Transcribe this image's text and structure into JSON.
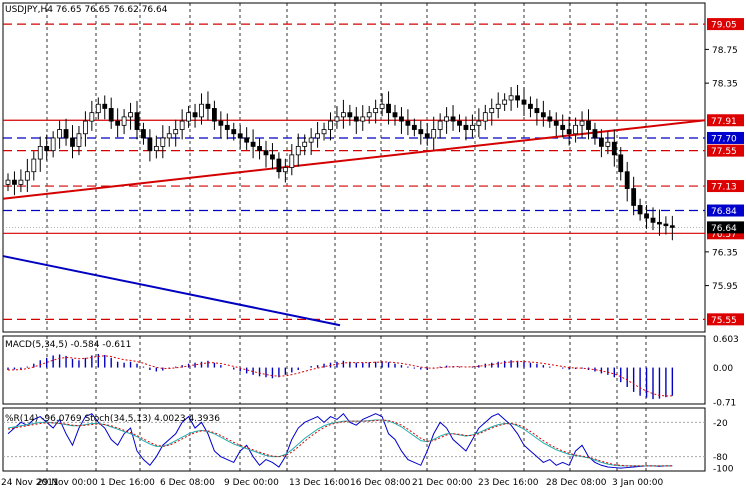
{
  "header": {
    "main_title": "USDJPY,H4  76.65 76.65 76.62 76.64",
    "macd_title": "MACD(5,34,5) -0.584 -0.611",
    "stoch_title": "%R(14) -96.0769  Stoch(34,5,13) 4.0023 4.3936"
  },
  "colors": {
    "background": "#ffffff",
    "candle": "#000000",
    "red_line": "#d40000",
    "blue_line": "#0000c0",
    "macd_signal": "#e00000",
    "stoch_main": "#20b0b0",
    "stoch_signal": "#e00000",
    "wpr_line": "#0000cc",
    "price_tag_red": "#dd0000",
    "price_tag_blue": "#0000cc",
    "current_tag": "#000000"
  },
  "chart_data": [
    {
      "type": "candlestick",
      "pane": "main",
      "symbol": "USDJPY",
      "timeframe": "H4",
      "ylim": [
        75.4,
        79.3
      ],
      "x_ticks": [
        "24 Nov 2011",
        "29 Nov 00:00",
        "1 Dec 16:00",
        "6 Dec 08:00",
        "9 Dec 00:00",
        "13 Dec 16:00",
        "16 Dec 08:00",
        "21 Dec 00:00",
        "23 Dec 16:00",
        "28 Dec 08:00",
        "3 Jan 00:00"
      ],
      "y_ticks": [
        79.15,
        78.75,
        78.35,
        77.95,
        77.55,
        77.15,
        76.75,
        76.35,
        75.95,
        75.55
      ],
      "closes": [
        77.2,
        77.15,
        77.2,
        77.3,
        77.45,
        77.6,
        77.55,
        77.7,
        77.8,
        77.7,
        77.6,
        77.75,
        77.9,
        78.0,
        78.1,
        78.05,
        77.9,
        77.85,
        77.95,
        78.0,
        77.8,
        77.7,
        77.55,
        77.6,
        77.7,
        77.75,
        77.8,
        77.9,
        78.0,
        77.95,
        78.1,
        78.05,
        77.9,
        77.85,
        77.8,
        77.75,
        77.7,
        77.65,
        77.6,
        77.55,
        77.5,
        77.45,
        77.3,
        77.35,
        77.5,
        77.6,
        77.65,
        77.7,
        77.75,
        77.8,
        77.9,
        77.95,
        78.0,
        77.95,
        77.9,
        77.95,
        78.0,
        78.05,
        78.1,
        78.0,
        77.95,
        77.9,
        77.85,
        77.8,
        77.75,
        77.7,
        77.8,
        77.9,
        77.95,
        77.9,
        77.85,
        77.8,
        77.85,
        77.9,
        78.0,
        78.05,
        78.1,
        78.15,
        78.2,
        78.15,
        78.1,
        78.05,
        78.0,
        77.95,
        77.9,
        77.85,
        77.8,
        77.75,
        77.85,
        77.9,
        77.8,
        77.7,
        77.6,
        77.65,
        77.5,
        77.3,
        77.1,
        76.9,
        76.8,
        76.75,
        76.7,
        76.68,
        76.66,
        76.64
      ],
      "horizontal_lines": [
        {
          "label": "79.05",
          "value": 79.05,
          "color": "red",
          "style": "dashed"
        },
        {
          "label": "77.91",
          "value": 77.91,
          "color": "red",
          "style": "solid"
        },
        {
          "label": "77.70",
          "value": 77.7,
          "color": "blue",
          "style": "dashed"
        },
        {
          "label": "77.55",
          "value": 77.55,
          "color": "red",
          "style": "dashed"
        },
        {
          "label": "77.13",
          "value": 77.13,
          "color": "red",
          "style": "dashed"
        },
        {
          "label": "76.84",
          "value": 76.84,
          "color": "blue",
          "style": "dashed"
        },
        {
          "label": "76.57",
          "value": 76.57,
          "color": "red",
          "style": "solid"
        },
        {
          "label": "75.55",
          "value": 75.55,
          "color": "red",
          "style": "dashed"
        }
      ],
      "current_price": {
        "label": "76.64",
        "value": 76.64
      },
      "trendlines": [
        {
          "color": "red",
          "from": [
            0,
            76.98
          ],
          "to": [
            103,
            77.91
          ]
        },
        {
          "color": "blue",
          "from": [
            0,
            76.3
          ],
          "to": [
            50,
            75.48
          ]
        }
      ]
    },
    {
      "type": "bar",
      "pane": "macd",
      "name": "MACD(5,34,5)",
      "value_label": "-0.584",
      "signal_label": "-0.611",
      "ylim": [
        -0.75,
        0.65
      ],
      "y_ticks": [
        "0.603",
        "0.00",
        "-0.71"
      ],
      "values": [
        -0.05,
        -0.04,
        -0.03,
        0.02,
        0.08,
        0.15,
        0.2,
        0.25,
        0.27,
        0.24,
        0.18,
        0.15,
        0.2,
        0.25,
        0.28,
        0.26,
        0.2,
        0.12,
        0.1,
        0.12,
        0.08,
        0.02,
        -0.05,
        -0.08,
        -0.06,
        -0.02,
        0.02,
        0.05,
        0.08,
        0.1,
        0.12,
        0.14,
        0.1,
        0.05,
        0.0,
        -0.04,
        -0.08,
        -0.12,
        -0.15,
        -0.18,
        -0.2,
        -0.22,
        -0.2,
        -0.15,
        -0.1,
        -0.05,
        0.0,
        0.03,
        0.05,
        0.08,
        0.1,
        0.12,
        0.14,
        0.12,
        0.1,
        0.1,
        0.11,
        0.12,
        0.13,
        0.11,
        0.08,
        0.05,
        0.02,
        -0.02,
        -0.04,
        -0.05,
        -0.02,
        0.02,
        0.04,
        0.03,
        0.02,
        0.0,
        0.02,
        0.05,
        0.08,
        0.1,
        0.12,
        0.14,
        0.15,
        0.14,
        0.12,
        0.1,
        0.08,
        0.05,
        0.02,
        0.0,
        -0.02,
        -0.04,
        -0.03,
        -0.02,
        -0.05,
        -0.08,
        -0.12,
        -0.15,
        -0.2,
        -0.3,
        -0.4,
        -0.5,
        -0.58,
        -0.62,
        -0.65,
        -0.64,
        -0.61,
        -0.58
      ]
    },
    {
      "type": "line",
      "pane": "stochastic",
      "name": "%R(14) / Stoch(34,5,13)",
      "ylim": [
        -105,
        5
      ],
      "y_ticks": [
        "-20",
        "-80",
        "-100"
      ],
      "series": [
        {
          "name": "%R(14)",
          "color": "blue",
          "values": [
            -40,
            -30,
            -20,
            -25,
            -15,
            -10,
            -20,
            -30,
            -15,
            -40,
            -60,
            -30,
            -10,
            -5,
            -20,
            -30,
            -50,
            -60,
            -40,
            -30,
            -70,
            -85,
            -95,
            -80,
            -60,
            -50,
            -40,
            -20,
            -10,
            -30,
            -20,
            -40,
            -70,
            -80,
            -85,
            -90,
            -70,
            -60,
            -80,
            -95,
            -85,
            -90,
            -98,
            -80,
            -50,
            -30,
            -20,
            -15,
            -10,
            -20,
            -10,
            -15,
            -5,
            -20,
            -25,
            -15,
            -10,
            -5,
            -10,
            -40,
            -50,
            -70,
            -85,
            -90,
            -95,
            -70,
            -40,
            -20,
            -30,
            -50,
            -60,
            -70,
            -50,
            -30,
            -20,
            -10,
            -5,
            -15,
            -25,
            -40,
            -60,
            -70,
            -80,
            -90,
            -85,
            -95,
            -90,
            -95,
            -70,
            -60,
            -80,
            -90,
            -95,
            -98,
            -99,
            -100,
            -99,
            -98,
            -97,
            -96,
            -96,
            -97,
            -96,
            -96
          ]
        },
        {
          "name": "Stoch main",
          "color": "teal",
          "values": [
            -30,
            -28,
            -26,
            -24,
            -22,
            -20,
            -20,
            -21,
            -22,
            -24,
            -26,
            -26,
            -24,
            -22,
            -22,
            -24,
            -28,
            -32,
            -36,
            -40,
            -45,
            -52,
            -58,
            -62,
            -62,
            -58,
            -52,
            -46,
            -40,
            -36,
            -34,
            -36,
            -40,
            -46,
            -52,
            -58,
            -62,
            -66,
            -70,
            -74,
            -78,
            -80,
            -80,
            -76,
            -68,
            -58,
            -48,
            -40,
            -32,
            -26,
            -22,
            -20,
            -18,
            -18,
            -18,
            -18,
            -17,
            -16,
            -16,
            -18,
            -22,
            -28,
            -36,
            -44,
            -52,
            -54,
            -50,
            -44,
            -40,
            -40,
            -42,
            -44,
            -42,
            -38,
            -33,
            -28,
            -24,
            -22,
            -22,
            -26,
            -32,
            -40,
            -48,
            -56,
            -62,
            -68,
            -72,
            -76,
            -78,
            -80,
            -82,
            -86,
            -90,
            -93,
            -95,
            -96,
            -96,
            -96,
            -96,
            -96,
            -96,
            -96,
            -96,
            -96
          ]
        },
        {
          "name": "Stoch signal",
          "color": "red",
          "values": [
            -32,
            -30,
            -28,
            -26,
            -24,
            -22,
            -21,
            -21,
            -22,
            -23,
            -25,
            -26,
            -25,
            -24,
            -23,
            -24,
            -26,
            -30,
            -34,
            -38,
            -43,
            -49,
            -55,
            -60,
            -62,
            -60,
            -55,
            -49,
            -43,
            -38,
            -35,
            -35,
            -38,
            -43,
            -49,
            -55,
            -60,
            -64,
            -68,
            -72,
            -76,
            -79,
            -80,
            -78,
            -72,
            -63,
            -53,
            -44,
            -36,
            -29,
            -24,
            -21,
            -19,
            -18,
            -18,
            -18,
            -18,
            -17,
            -16,
            -17,
            -20,
            -25,
            -32,
            -40,
            -48,
            -53,
            -52,
            -47,
            -42,
            -40,
            -41,
            -43,
            -43,
            -40,
            -35,
            -30,
            -26,
            -23,
            -22,
            -24,
            -29,
            -36,
            -44,
            -52,
            -59,
            -65,
            -70,
            -74,
            -77,
            -79,
            -81,
            -84,
            -88,
            -91,
            -94,
            -95,
            -96,
            -96,
            -96,
            -96,
            -96,
            -96,
            -96,
            -96
          ]
        }
      ]
    }
  ]
}
